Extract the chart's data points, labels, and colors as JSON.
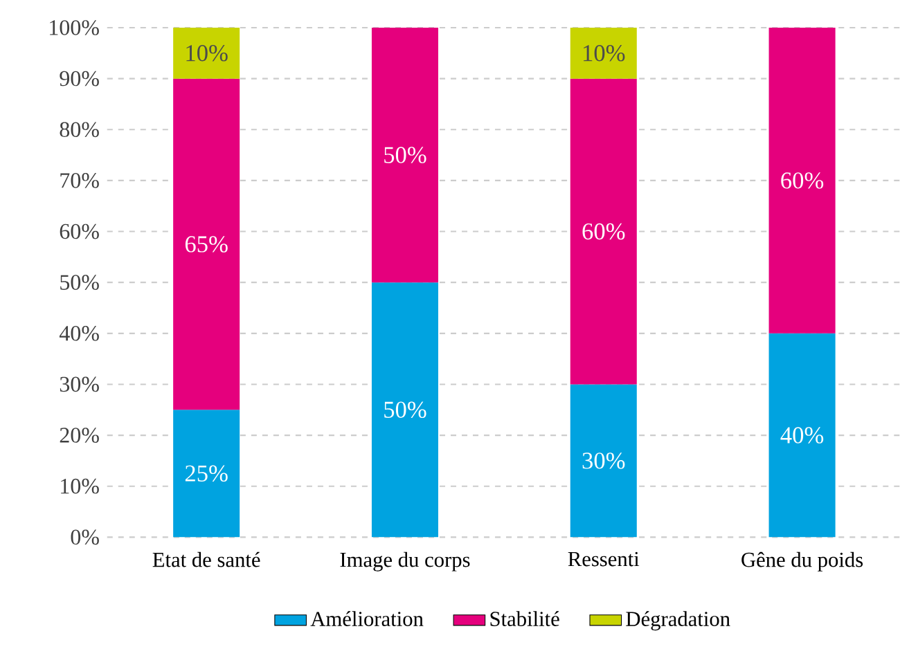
{
  "chart_data": {
    "type": "bar",
    "stacked": true,
    "categories": [
      "Etat de santé",
      "Image du corps",
      "Ressenti",
      "Gêne du poids"
    ],
    "series": [
      {
        "name": "Amélioration",
        "color": "#00a3e0",
        "values": [
          25,
          50,
          30,
          40
        ],
        "value_labels": [
          "25%",
          "50%",
          "30%",
          "40%"
        ]
      },
      {
        "name": "Stabilité",
        "color": "#e5007d",
        "values": [
          65,
          50,
          60,
          60
        ],
        "value_labels": [
          "65%",
          "50%",
          "60%",
          "60%"
        ]
      },
      {
        "name": "Dégradation",
        "color": "#c8d400",
        "values": [
          10,
          null,
          10,
          null
        ],
        "value_labels": [
          "10%",
          null,
          "10%",
          null
        ]
      }
    ],
    "ylim": [
      0,
      100
    ],
    "yticks": [
      {
        "value": 0,
        "label": "0%"
      },
      {
        "value": 10,
        "label": "10%"
      },
      {
        "value": 20,
        "label": "20%"
      },
      {
        "value": 30,
        "label": "30%"
      },
      {
        "value": 40,
        "label": "40%"
      },
      {
        "value": 50,
        "label": "50%"
      },
      {
        "value": 60,
        "label": "60%"
      },
      {
        "value": 70,
        "label": "70%"
      },
      {
        "value": 80,
        "label": "80%"
      },
      {
        "value": 90,
        "label": "90%"
      },
      {
        "value": 100,
        "label": "100%"
      }
    ],
    "grid": "y",
    "legend": "bottom"
  }
}
